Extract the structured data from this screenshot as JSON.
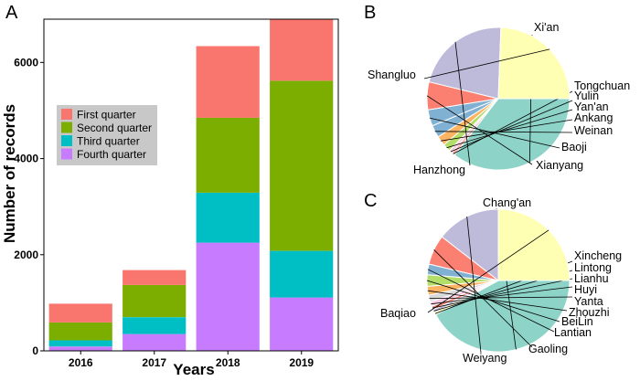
{
  "panels": {
    "a": "A",
    "b": "B",
    "c": "C"
  },
  "chart_data": [
    {
      "type": "bar",
      "stacked": true,
      "categories": [
        "2016",
        "2017",
        "2018",
        "2019"
      ],
      "series": [
        {
          "name": "Fourth quarter",
          "color": "#C77CFF",
          "values": [
            90,
            350,
            2250,
            1110
          ]
        },
        {
          "name": "Third quarter",
          "color": "#00BFC4",
          "values": [
            130,
            350,
            1040,
            970
          ]
        },
        {
          "name": "Second quarter",
          "color": "#7CAE00",
          "values": [
            370,
            670,
            1560,
            3540
          ]
        },
        {
          "name": "First quarter",
          "color": "#F8766D",
          "values": [
            390,
            310,
            1490,
            1280
          ]
        }
      ],
      "legend_order": [
        "First quarter",
        "Second quarter",
        "Third quarter",
        "Fourth quarter"
      ],
      "legend_position": "middle-left",
      "xlabel": "Years",
      "ylabel": "Number of records",
      "yticks": [
        0,
        2000,
        4000,
        6000
      ],
      "ylim": [
        0,
        6900
      ],
      "grid": false
    },
    {
      "type": "pie",
      "labels": [
        "Xi'an",
        "Tongchuan",
        "Yulin",
        "Yan'an",
        "Ankang",
        "Weinan",
        "Baoji",
        "Xianyang",
        "Hanzhong",
        "Shangluo"
      ],
      "values": [
        35.5,
        0.8,
        0.7,
        1.8,
        2.2,
        2.8,
        3.7,
        6.3,
        21.8,
        24.4
      ],
      "colors": [
        "#8DD3C7",
        "#FBB4AE",
        "#FCCDE5",
        "#B3DE69",
        "#FDB462",
        "#80B1D3",
        "#80B1D3",
        "#FB8072",
        "#BEBADA",
        "#FFFFB3"
      ],
      "grid": false
    },
    {
      "type": "pie",
      "labels": [
        "Chang'an",
        "Xincheng",
        "Lintong",
        "Lianhu",
        "Huyi",
        "Yanta",
        "Zhouzhi",
        "BeiLin",
        "Lantian",
        "Gaoling",
        "Weiyang",
        "Baqiao"
      ],
      "values": [
        42.0,
        0.6,
        0.7,
        0.8,
        1.1,
        1.5,
        2.0,
        2.6,
        2.4,
        6.8,
        14.5,
        25.0
      ],
      "colors": [
        "#8DD3C7",
        "#FFFFB3",
        "#BEBADA",
        "#FB8072",
        "#FCCDE5",
        "#D9D9D9",
        "#FDB462",
        "#B3DE69",
        "#80B1D3",
        "#FB8072",
        "#BEBADA",
        "#FFFFB3"
      ],
      "grid": false
    }
  ]
}
